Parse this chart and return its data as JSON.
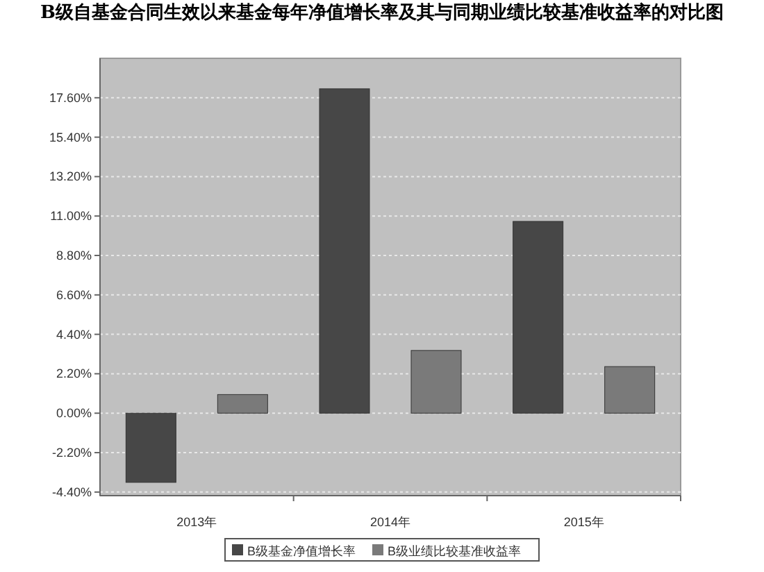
{
  "chart_data": {
    "type": "bar",
    "title": "B级自基金合同生效以来基金每年净值增长率及其与同期业绩比较基准收益率的对比图",
    "categories": [
      "2013年",
      "2014年",
      "2015年"
    ],
    "series": [
      {
        "name": "B级基金净值增长率",
        "color": "#474747",
        "values": [
          -3.86,
          18.1,
          10.7
        ]
      },
      {
        "name": "B级业绩比较基准收益率",
        "color": "#7a7a7a",
        "values": [
          1.04,
          3.5,
          2.6
        ]
      }
    ],
    "ylim": [
      -4.6,
      19.8
    ],
    "yticks": [
      {
        "value": -4.4,
        "label": "-4.40%"
      },
      {
        "value": -2.2,
        "label": "-2.20%"
      },
      {
        "value": 0,
        "label": "0.00%"
      },
      {
        "value": 2.2,
        "label": "2.20%"
      },
      {
        "value": 4.4,
        "label": "4.40%"
      },
      {
        "value": 6.6,
        "label": "6.60%"
      },
      {
        "value": 8.8,
        "label": "8.80%"
      },
      {
        "value": 11,
        "label": "11.00%"
      },
      {
        "value": 13.2,
        "label": "13.20%"
      },
      {
        "value": 15.4,
        "label": "15.40%"
      },
      {
        "value": 17.6,
        "label": "17.60%"
      }
    ],
    "grid": "y",
    "legend": "bottom"
  }
}
